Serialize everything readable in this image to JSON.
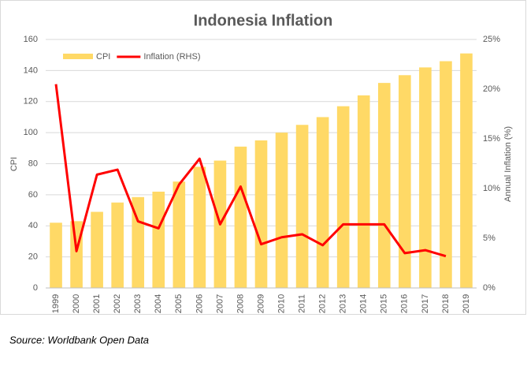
{
  "chart_data": {
    "type": "bar",
    "title": "Indonesia Inflation",
    "categories": [
      "1999",
      "2000",
      "2001",
      "2002",
      "2003",
      "2004",
      "2005",
      "2006",
      "2007",
      "2008",
      "2009",
      "2010",
      "2011",
      "2012",
      "2013",
      "2014",
      "2015",
      "2016",
      "2017",
      "2018",
      "2019"
    ],
    "series": [
      {
        "name": "CPI",
        "type": "bar",
        "color": "#ffd966",
        "values": [
          42,
          43,
          49,
          55,
          58.5,
          62,
          68.5,
          78,
          82,
          91,
          95,
          100,
          105,
          110,
          117,
          124,
          132,
          137,
          142,
          146,
          151
        ]
      },
      {
        "name": "Inflation (RHS)",
        "type": "line",
        "axis": "y2",
        "color": "#ff0000",
        "values": [
          20.5,
          3.7,
          11.4,
          11.9,
          6.7,
          6.0,
          10.4,
          13.0,
          6.4,
          10.2,
          4.4,
          5.1,
          5.4,
          4.3,
          6.4,
          6.4,
          6.4,
          3.5,
          3.8,
          3.2,
          null
        ]
      }
    ],
    "ylabel": "CPI",
    "y2label": "Annual Inflation (%)",
    "ylim": [
      0,
      160
    ],
    "yticks": [
      0,
      20,
      40,
      60,
      80,
      100,
      120,
      140,
      160
    ],
    "y2lim": [
      0,
      25
    ],
    "y2ticks": [
      {
        "value": 0,
        "label": "0%"
      },
      {
        "value": 5,
        "label": "5%"
      },
      {
        "value": 10,
        "label": "10%"
      },
      {
        "value": 15,
        "label": "15%"
      },
      {
        "value": 20,
        "label": "20%"
      },
      {
        "value": 25,
        "label": "25%"
      }
    ],
    "grid": true,
    "legend": "top-left",
    "source": "Source: Worldbank Open Data"
  }
}
